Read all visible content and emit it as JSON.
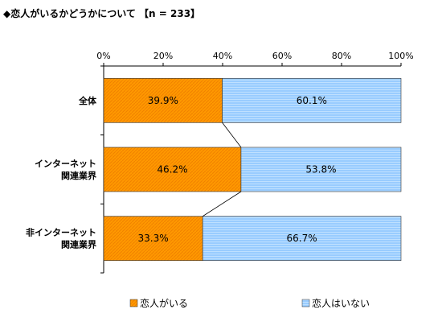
{
  "chart_data": {
    "type": "bar",
    "orientation": "horizontal",
    "stacked": true,
    "percent": true,
    "title": "◆恋人がいるかどうかについて 【n = 233】",
    "categories": [
      [
        "全体"
      ],
      [
        "インターネット",
        "関連業界"
      ],
      [
        "非インターネット",
        "関連業界"
      ]
    ],
    "series": [
      {
        "name": "恋人がいる",
        "values": [
          39.9,
          46.2,
          33.3
        ],
        "labels": [
          "39.9%",
          "46.2%",
          "33.3%"
        ],
        "color": "#FF9900",
        "pattern": "diagonal"
      },
      {
        "name": "恋人はいない",
        "values": [
          60.1,
          53.8,
          66.7
        ],
        "labels": [
          "60.1%",
          "53.8%",
          "66.7%"
        ],
        "color": "#99CCFF",
        "pattern": "horizontal"
      }
    ],
    "xlim": [
      0,
      100
    ],
    "xticks": [
      "0%",
      "20%",
      "40%",
      "60%",
      "80%",
      "100%"
    ],
    "grid": false,
    "series_lines": true,
    "legend_position": "bottom"
  }
}
